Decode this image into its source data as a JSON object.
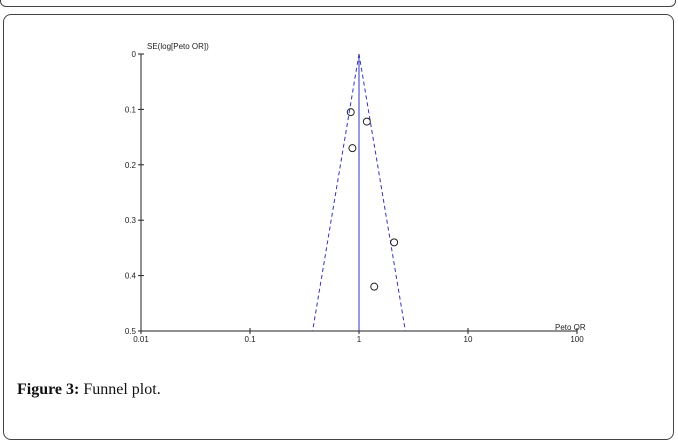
{
  "chart_data": {
    "type": "scatter",
    "xscale": "log",
    "xlim": [
      0.01,
      100
    ],
    "ylim": [
      0,
      0.5
    ],
    "y_inverted": true,
    "xlabel": "Peto OR",
    "ylabel": "SE(log[Peto OR])",
    "xticks": [
      "0.01",
      "0.1",
      "1",
      "10",
      "100"
    ],
    "yticks": [
      "0",
      "0.1",
      "0.2",
      "0.3",
      "0.4",
      "0.5"
    ],
    "xtick_values": [
      0.01,
      0.1,
      1,
      10,
      100
    ],
    "ytick_values": [
      0,
      0.1,
      0.2,
      0.3,
      0.4,
      0.5
    ],
    "points": [
      {
        "x": 0.84,
        "y": 0.105
      },
      {
        "x": 1.18,
        "y": 0.122
      },
      {
        "x": 0.87,
        "y": 0.17
      },
      {
        "x": 2.1,
        "y": 0.34
      },
      {
        "x": 1.38,
        "y": 0.42
      }
    ],
    "pooled_estimate": 1.0,
    "pseudo_ci_lines": "95% funnel (dashed)",
    "colors": {
      "funnel": "#3333bb",
      "center_line": "#3333bb",
      "points": "#222222",
      "axes": "#222222"
    },
    "grid": false
  },
  "caption": {
    "label": "Figure 3:",
    "text": " Funnel plot."
  }
}
